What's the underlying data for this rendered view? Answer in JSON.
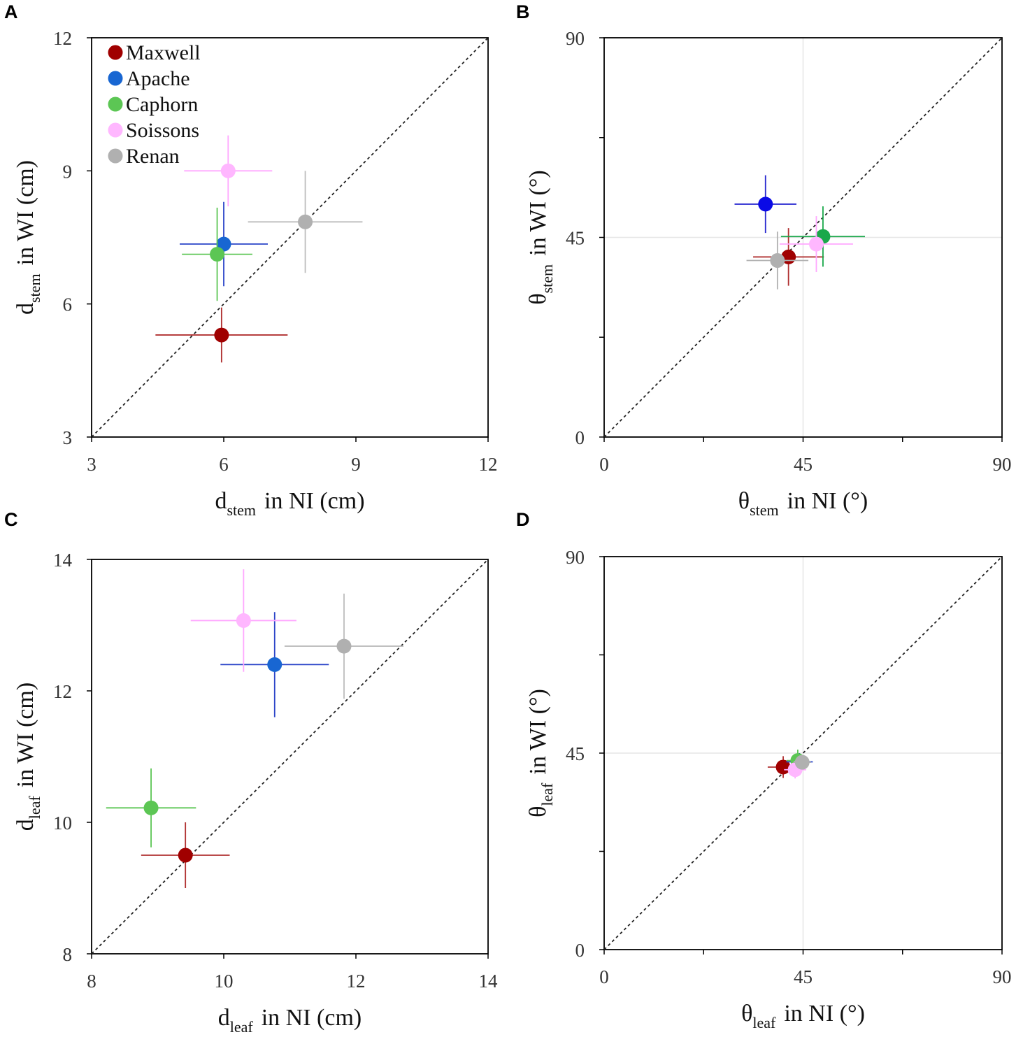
{
  "figure": {
    "legend": {
      "position": "top-left of panel A",
      "entries": [
        {
          "name": "Maxwell",
          "color": "#a00000"
        },
        {
          "name": "Apache",
          "color": "#1866d2"
        },
        {
          "name": "Caphorn",
          "color": "#5cc654"
        },
        {
          "name": "Soissons",
          "color": "#ffb7ff"
        },
        {
          "name": "Renan",
          "color": "#b0b0b0"
        }
      ]
    }
  },
  "chart_data": [
    {
      "panel": "A",
      "type": "scatter",
      "xlabel": {
        "main": "d",
        "sub": "stem",
        "rest": "in NI (cm)"
      },
      "ylabel": {
        "main": "d",
        "sub": "stem",
        "rest": "in WI (cm)"
      },
      "xlim": [
        3,
        12
      ],
      "ylim": [
        3,
        12
      ],
      "xticks": [
        3,
        6,
        9,
        12
      ],
      "yticks": [
        3,
        6,
        9,
        12
      ],
      "xtick_labels": [
        "3",
        "6",
        "9",
        "12"
      ],
      "ytick_labels": [
        "3",
        "6",
        "9",
        "12"
      ],
      "identity_line": true,
      "points": [
        {
          "name": "Maxwell",
          "color": "#a00000",
          "errcolor": "#b03030",
          "x": 5.95,
          "y": 5.3,
          "xerr": 1.5,
          "yerr": 0.62
        },
        {
          "name": "Apache",
          "color": "#1866d2",
          "errcolor": "#2a44c8",
          "x": 6.0,
          "y": 7.35,
          "xerr": 1.0,
          "yerr": 0.95
        },
        {
          "name": "Caphorn",
          "color": "#5cc654",
          "errcolor": "#5cc654",
          "x": 5.85,
          "y": 7.12,
          "xerr": 0.8,
          "yerr": 1.05
        },
        {
          "name": "Soissons",
          "color": "#ffb7ff",
          "errcolor": "#ffa8ff",
          "x": 6.1,
          "y": 9.0,
          "xerr": 1.0,
          "yerr": 0.8
        },
        {
          "name": "Renan",
          "color": "#b0b0b0",
          "errcolor": "#bdbdbd",
          "x": 7.85,
          "y": 7.85,
          "xerr": 1.3,
          "yerr": 1.15
        }
      ]
    },
    {
      "panel": "B",
      "type": "scatter",
      "xlabel": {
        "main": "θ",
        "sub": "stem",
        "rest": "in NI (°)"
      },
      "ylabel": {
        "main": "θ",
        "sub": "stem",
        "rest": "in WI (°)"
      },
      "xlim": [
        0,
        90
      ],
      "ylim": [
        0,
        90
      ],
      "xticks": [
        0,
        22.5,
        45,
        67.5,
        90
      ],
      "yticks": [
        0,
        22.5,
        45,
        67.5,
        90
      ],
      "xtick_labels": [
        "0",
        "",
        "45",
        "",
        "90"
      ],
      "ytick_labels": [
        "0",
        "",
        "45",
        "",
        "90"
      ],
      "grid_at": 45,
      "identity_line": true,
      "points": [
        {
          "name": "Maxwell",
          "color": "#a00000",
          "errcolor": "#b03030",
          "x": 41.7,
          "y": 40.6,
          "xerr": 8.0,
          "yerr": 6.5
        },
        {
          "name": "Apache",
          "color": "#0a0ae6",
          "errcolor": "#2a2ad0",
          "x": 36.5,
          "y": 52.5,
          "xerr": 7.0,
          "yerr": 6.5
        },
        {
          "name": "Caphorn",
          "color": "#1aa84a",
          "errcolor": "#1aa84a",
          "x": 49.5,
          "y": 45.2,
          "xerr": 9.5,
          "yerr": 6.8
        },
        {
          "name": "Soissons",
          "color": "#ffb7ff",
          "errcolor": "#ffa8ff",
          "x": 48.0,
          "y": 43.5,
          "xerr": 8.3,
          "yerr": 6.3
        },
        {
          "name": "Renan",
          "color": "#b0b0b0",
          "errcolor": "#b0b0b0",
          "x": 39.2,
          "y": 39.8,
          "xerr": 7.0,
          "yerr": 6.5
        }
      ]
    },
    {
      "panel": "C",
      "type": "scatter",
      "xlabel": {
        "main": "d",
        "sub": "leaf",
        "rest": "in NI (cm)"
      },
      "ylabel": {
        "main": "d",
        "sub": "leaf",
        "rest": "in WI (cm)"
      },
      "xlim": [
        8,
        14
      ],
      "ylim": [
        8,
        14
      ],
      "xticks": [
        8,
        10,
        12,
        14
      ],
      "yticks": [
        8,
        10,
        12,
        14
      ],
      "xtick_labels": [
        "8",
        "10",
        "12",
        "14"
      ],
      "ytick_labels": [
        "8",
        "10",
        "12",
        "14"
      ],
      "identity_line": true,
      "points": [
        {
          "name": "Maxwell",
          "color": "#a00000",
          "errcolor": "#b03030",
          "x": 9.42,
          "y": 9.5,
          "xerr": 0.67,
          "yerr": 0.5
        },
        {
          "name": "Apache",
          "color": "#1866d2",
          "errcolor": "#2a44c8",
          "x": 10.77,
          "y": 12.4,
          "xerr": 0.82,
          "yerr": 0.8
        },
        {
          "name": "Caphorn",
          "color": "#5cc654",
          "errcolor": "#5cc654",
          "x": 8.9,
          "y": 10.22,
          "xerr": 0.68,
          "yerr": 0.6
        },
        {
          "name": "Soissons",
          "color": "#ffb7ff",
          "errcolor": "#ffa8ff",
          "x": 10.3,
          "y": 13.07,
          "xerr": 0.8,
          "yerr": 0.78
        },
        {
          "name": "Renan",
          "color": "#b0b0b0",
          "errcolor": "#bdbdbd",
          "x": 11.82,
          "y": 12.68,
          "xerr": 0.9,
          "yerr": 0.8
        }
      ]
    },
    {
      "panel": "D",
      "type": "scatter",
      "xlabel": {
        "main": "θ",
        "sub": "leaf",
        "rest": "in NI (°)"
      },
      "ylabel": {
        "main": "θ",
        "sub": "leaf",
        "rest": "in WI (°)"
      },
      "xlim": [
        0,
        90
      ],
      "ylim": [
        0,
        90
      ],
      "xticks": [
        0,
        22.5,
        45,
        67.5,
        90
      ],
      "yticks": [
        0,
        22.5,
        45,
        67.5,
        90
      ],
      "xtick_labels": [
        "0",
        "",
        "45",
        "",
        "90"
      ],
      "ytick_labels": [
        "0",
        "",
        "45",
        "",
        "90"
      ],
      "grid_at": 45,
      "identity_line": true,
      "points": [
        {
          "name": "Maxwell",
          "color": "#a00000",
          "errcolor": "#b03030",
          "x": 40.5,
          "y": 41.8,
          "xerr": 3.5,
          "yerr": 2.5
        },
        {
          "name": "Apache",
          "color": "#1866d2",
          "errcolor": "#2a44c8",
          "x": 44.2,
          "y": 43.0,
          "xerr": 3.0,
          "yerr": 2.0
        },
        {
          "name": "Caphorn",
          "color": "#5cc654",
          "errcolor": "#5cc654",
          "x": 43.8,
          "y": 43.3,
          "xerr": 2.5,
          "yerr": 2.5
        },
        {
          "name": "Soissons",
          "color": "#ffb7ff",
          "errcolor": "#ffa8ff",
          "x": 43.2,
          "y": 41.2,
          "xerr": 2.5,
          "yerr": 2.0
        },
        {
          "name": "Renan",
          "color": "#b0b0b0",
          "errcolor": "#b0b0b0",
          "x": 44.8,
          "y": 42.9,
          "xerr": 2.0,
          "yerr": 1.5
        }
      ]
    }
  ]
}
